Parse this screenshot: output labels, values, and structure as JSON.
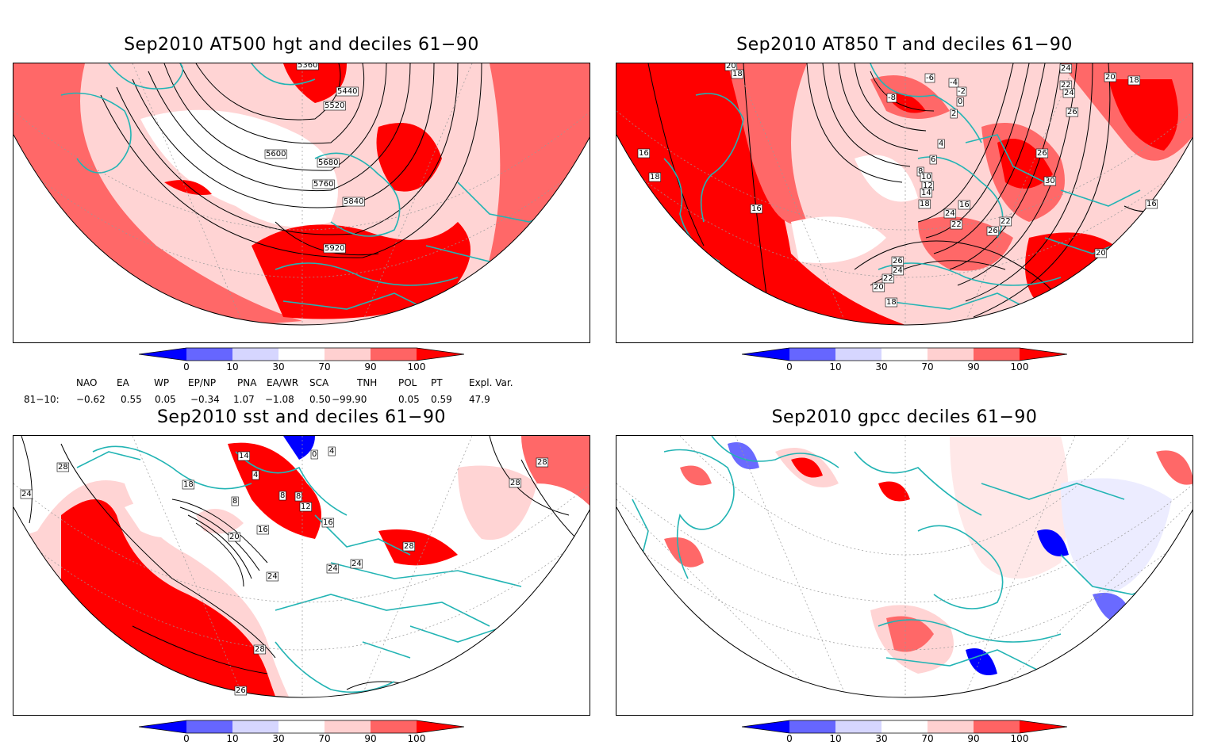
{
  "panels": [
    {
      "title": "Sep2010 AT500 hgt and deciles 61−90",
      "contour_labels": [
        "5360",
        "5440",
        "5520",
        "5600",
        "5680",
        "5760",
        "5840",
        "5920"
      ]
    },
    {
      "title": "Sep2010 AT850 T and deciles 61−90",
      "contour_labels": [
        "20",
        "18",
        "16",
        "18",
        "16",
        "-6",
        "-4",
        "-8",
        "-2",
        "0",
        "2",
        "4",
        "6",
        "8",
        "10",
        "12",
        "14",
        "16",
        "18",
        "22",
        "24",
        "22",
        "26",
        "26",
        "30",
        "24",
        "26",
        "24",
        "22",
        "20",
        "18",
        "20",
        "22",
        "24",
        "26",
        "20",
        "16",
        "18"
      ]
    },
    {
      "title": "Sep2010 sst and deciles 61−90",
      "contour_labels": [
        "28",
        "24",
        "18",
        "14",
        "4",
        "0",
        "4",
        "8",
        "8",
        "8",
        "12",
        "16",
        "16",
        "20",
        "24",
        "24",
        "24",
        "28",
        "26",
        "28",
        "28",
        "28"
      ]
    },
    {
      "title": "Sep2010 gpcc deciles 61−90",
      "contour_labels": []
    }
  ],
  "colorbar": {
    "ticks": [
      "0",
      "10",
      "30",
      "70",
      "90",
      "100"
    ],
    "colors": [
      "#0000ff",
      "#6666ff",
      "#d6d6ff",
      "#ffffff",
      "#ffd0d0",
      "#ff6464",
      "#ff0000"
    ]
  },
  "map_colors": {
    "d70_90": "#ffd4d4",
    "d90_100": "#ff6868",
    "d100": "#ff0000",
    "d10_30": "#d8d8ff",
    "d0_10": "#6a6aff",
    "below0": "#0000ff",
    "coast": "#22b4b4"
  },
  "indices": {
    "headers": [
      "NAO",
      "EA",
      "WP",
      "EP/NP",
      "PNA",
      "EA/WR",
      "SCA",
      "TNH",
      "POL",
      "PT",
      "Expl. Var."
    ],
    "row_label": "81−10:",
    "values": [
      "−0.62",
      "0.55",
      "0.05",
      "−0.34",
      "1.07",
      "−1.08",
      "0.50",
      "−99.90",
      "0.05",
      "0.59",
      "47.9"
    ]
  }
}
